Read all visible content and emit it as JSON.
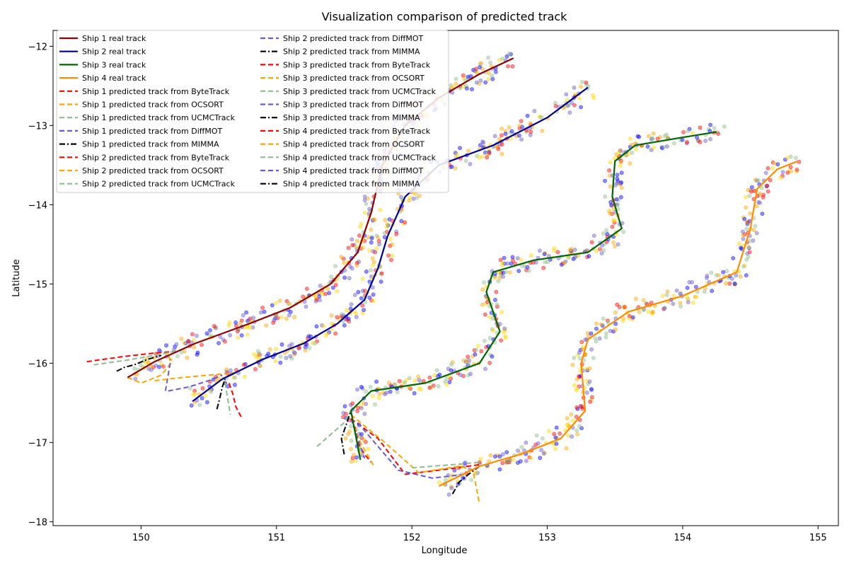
{
  "chart_data": {
    "type": "line",
    "title": "Visualization comparison of predicted track",
    "xlabel": "Longitude",
    "ylabel": "Latitude",
    "xlim": [
      149.35,
      155.15
    ],
    "ylim": [
      -18.05,
      -11.8
    ],
    "xticks": [
      150,
      151,
      152,
      153,
      154,
      155
    ],
    "yticks": [
      -12,
      -13,
      -14,
      -15,
      -16,
      -17,
      -18
    ],
    "xtick_labels": [
      "150",
      "151",
      "152",
      "153",
      "154",
      "155"
    ],
    "ytick_labels": [
      "−12",
      "−13",
      "−14",
      "−15",
      "−16",
      "−17",
      "−18"
    ],
    "grid": false,
    "legend_position": "top-left",
    "legend_columns": 2,
    "colors": {
      "ship1": "#8b0000",
      "ship2": "#00008b",
      "ship3": "#006400",
      "ship4": "#ff8c00",
      "bytetrack": "#ff0000",
      "ocsort": "#ffa500",
      "ucmctrack": "#8fbc8f",
      "diffmot": "#6a5acd",
      "mimma": "#000000"
    },
    "series": [
      {
        "name": "Ship 1 real track",
        "color": "#8b0000",
        "style": "solid",
        "x": [
          149.9,
          150.1,
          150.4,
          150.8,
          151.1,
          151.4,
          151.6,
          151.7,
          151.78,
          151.95,
          152.2,
          152.5,
          152.75
        ],
        "y": [
          -16.18,
          -15.98,
          -15.75,
          -15.5,
          -15.3,
          -15.0,
          -14.6,
          -14.1,
          -13.5,
          -13.0,
          -12.65,
          -12.35,
          -12.15
        ]
      },
      {
        "name": "Ship 2 real track",
        "color": "#00008b",
        "style": "solid",
        "x": [
          150.38,
          150.6,
          150.9,
          151.2,
          151.45,
          151.65,
          151.75,
          151.82,
          151.95,
          152.2,
          152.6,
          153.0,
          153.3
        ],
        "y": [
          -16.48,
          -16.2,
          -15.95,
          -15.75,
          -15.5,
          -15.2,
          -14.8,
          -14.4,
          -13.9,
          -13.5,
          -13.25,
          -12.9,
          -12.52
        ]
      },
      {
        "name": "Ship 3 real track",
        "color": "#006400",
        "style": "solid",
        "x": [
          151.62,
          151.55,
          151.7,
          152.1,
          152.5,
          152.65,
          152.55,
          152.6,
          152.9,
          153.3,
          153.55,
          153.48,
          153.5,
          153.65,
          154.0,
          154.25
        ],
        "y": [
          -17.22,
          -16.6,
          -16.35,
          -16.25,
          -16.0,
          -15.6,
          -15.1,
          -14.85,
          -14.7,
          -14.6,
          -14.3,
          -13.9,
          -13.45,
          -13.25,
          -13.15,
          -13.08
        ]
      },
      {
        "name": "Ship 4 real track",
        "color": "#ff8c00",
        "style": "solid",
        "x": [
          152.2,
          152.5,
          152.8,
          153.1,
          153.28,
          153.25,
          153.3,
          153.6,
          154.0,
          154.4,
          154.5,
          154.55,
          154.7,
          154.85
        ],
        "y": [
          -17.55,
          -17.3,
          -17.15,
          -16.95,
          -16.6,
          -16.0,
          -15.7,
          -15.35,
          -15.15,
          -14.85,
          -14.3,
          -13.8,
          -13.55,
          -13.45
        ]
      },
      {
        "name": "Ship 1 predicted track from ByteTrack",
        "color": "#ff0000",
        "style": "dashed",
        "x": [
          149.6,
          149.85,
          150.05,
          150.25
        ],
        "y": [
          -15.98,
          -15.92,
          -15.88,
          -15.85
        ]
      },
      {
        "name": "Ship 1 predicted track from OCSORT",
        "color": "#ffa500",
        "style": "dashed",
        "x": [
          149.9,
          150.0,
          150.15,
          150.22,
          150.2
        ],
        "y": [
          -16.18,
          -16.25,
          -16.15,
          -16.0,
          -15.88
        ]
      },
      {
        "name": "Ship 1 predicted track from UCMCTrack",
        "color": "#8fbc8f",
        "style": "dashed",
        "x": [
          149.65,
          149.9,
          150.1,
          150.25
        ],
        "y": [
          -16.02,
          -15.96,
          -15.9,
          -15.85
        ]
      },
      {
        "name": "Ship 1 predicted track from DiffMOT",
        "color": "#6a5acd",
        "style": "dashed",
        "x": [
          150.18,
          150.2,
          150.22
        ],
        "y": [
          -16.35,
          -16.15,
          -15.95
        ]
      },
      {
        "name": "Ship 1 predicted track from MIMMA",
        "color": "#000000",
        "style": "dashdot",
        "x": [
          149.82,
          149.88,
          149.95,
          150.05,
          150.15
        ],
        "y": [
          -16.1,
          -16.05,
          -16.02,
          -15.95,
          -15.9
        ]
      },
      {
        "name": "Ship 2 predicted track from ByteTrack",
        "color": "#ff0000",
        "style": "dashed",
        "x": [
          150.65,
          150.68,
          150.7,
          150.74
        ],
        "y": [
          -16.25,
          -16.4,
          -16.55,
          -16.68
        ]
      },
      {
        "name": "Ship 2 predicted track from OCSORT",
        "color": "#ffa500",
        "style": "dashed",
        "x": [
          150.1,
          150.3,
          150.5,
          150.7
        ],
        "y": [
          -16.22,
          -16.18,
          -16.15,
          -16.12
        ]
      },
      {
        "name": "Ship 2 predicted track from UCMCTrack",
        "color": "#8fbc8f",
        "style": "dashed",
        "x": [
          150.62,
          150.64,
          150.66
        ],
        "y": [
          -16.25,
          -16.45,
          -16.65
        ]
      },
      {
        "name": "Ship 2 predicted track from DiffMOT",
        "color": "#6a5acd",
        "style": "dashed",
        "x": [
          150.2,
          150.35,
          150.5,
          150.6
        ],
        "y": [
          -16.35,
          -16.3,
          -16.22,
          -16.15
        ]
      },
      {
        "name": "Ship 2 predicted track from MIMMA",
        "color": "#000000",
        "style": "dashdot",
        "x": [
          150.56,
          150.58,
          150.6,
          150.62
        ],
        "y": [
          -16.58,
          -16.45,
          -16.3,
          -16.2
        ]
      },
      {
        "name": "Ship 3 predicted track from ByteTrack",
        "color": "#ff0000",
        "style": "dashed",
        "x": [
          151.58,
          151.6,
          151.65,
          151.7
        ],
        "y": [
          -16.8,
          -17.0,
          -17.15,
          -17.25
        ]
      },
      {
        "name": "Ship 3 predicted track from OCSORT",
        "color": "#ffa500",
        "style": "dashed",
        "x": [
          151.55,
          151.62,
          151.72
        ],
        "y": [
          -16.7,
          -17.0,
          -17.3
        ]
      },
      {
        "name": "Ship 3 predicted track from UCMCTrack",
        "color": "#8fbc8f",
        "style": "dashed",
        "x": [
          151.3,
          151.4,
          151.5,
          151.55
        ],
        "y": [
          -17.05,
          -16.9,
          -16.75,
          -16.6
        ]
      },
      {
        "name": "Ship 3 predicted track from DiffMOT",
        "color": "#6a5acd",
        "style": "dashed",
        "x": [
          151.55,
          151.6,
          151.65
        ],
        "y": [
          -16.7,
          -16.95,
          -17.2
        ]
      },
      {
        "name": "Ship 3 predicted track from MIMMA",
        "color": "#000000",
        "style": "dashdot",
        "x": [
          151.5,
          151.48,
          151.52,
          151.55
        ],
        "y": [
          -17.15,
          -16.95,
          -16.75,
          -16.6
        ]
      },
      {
        "name": "Ship 4 predicted track from ByteTrack",
        "color": "#ff0000",
        "style": "dashed",
        "x": [
          151.55,
          151.75,
          151.95,
          152.2,
          152.5
        ],
        "y": [
          -16.7,
          -16.95,
          -17.4,
          -17.35,
          -17.28
        ]
      },
      {
        "name": "Ship 4 predicted track from OCSORT",
        "color": "#ffa500",
        "style": "dashed",
        "x": [
          151.55,
          151.8,
          152.05,
          152.35,
          152.45,
          152.48,
          152.5
        ],
        "y": [
          -16.65,
          -17.0,
          -17.38,
          -17.3,
          -17.35,
          -17.6,
          -17.78
        ]
      },
      {
        "name": "Ship 4 predicted track from UCMCTrack",
        "color": "#8fbc8f",
        "style": "dashed",
        "x": [
          152.0,
          152.3,
          152.5
        ],
        "y": [
          -17.32,
          -17.28,
          -17.25
        ]
      },
      {
        "name": "Ship 4 predicted track from DiffMOT",
        "color": "#6a5acd",
        "style": "dashed",
        "x": [
          151.6,
          151.75,
          151.9,
          152.15,
          152.4
        ],
        "y": [
          -16.75,
          -17.05,
          -17.35,
          -17.45,
          -17.4
        ]
      },
      {
        "name": "Ship 4 predicted track from MIMMA",
        "color": "#000000",
        "style": "dashdot",
        "x": [
          152.3,
          152.35,
          152.42,
          152.5
        ],
        "y": [
          -17.65,
          -17.5,
          -17.4,
          -17.3
        ]
      }
    ]
  }
}
